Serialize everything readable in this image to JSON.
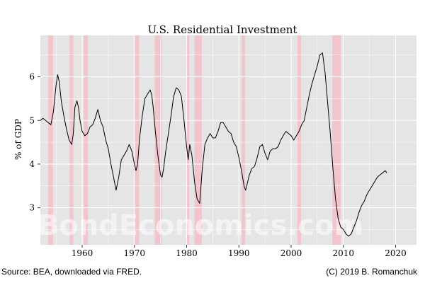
{
  "chart_data": {
    "type": "line",
    "title": "U.S. Residential Investment",
    "xlabel": "",
    "ylabel": "% of GDP",
    "xlim": [
      1952,
      2024
    ],
    "ylim": [
      2.15,
      6.95
    ],
    "x_ticks": [
      1960,
      1970,
      1980,
      1990,
      2000,
      2010,
      2020
    ],
    "y_ticks": [
      3,
      4,
      5,
      6
    ],
    "grid": true,
    "legend": "none",
    "colors": {
      "panel": "#e5e5e5",
      "grid": "#ffffff",
      "line": "#000000",
      "recession": "#f4c0c8"
    },
    "recessions": [
      [
        1953.5,
        1954.4
      ],
      [
        1957.6,
        1958.3
      ],
      [
        1960.3,
        1961.1
      ],
      [
        1969.9,
        1970.9
      ],
      [
        1973.9,
        1975.2
      ],
      [
        1980.0,
        1980.5
      ],
      [
        1981.5,
        1982.9
      ],
      [
        1990.5,
        1991.2
      ],
      [
        2001.2,
        2001.9
      ],
      [
        2007.9,
        2009.5
      ]
    ],
    "series": [
      {
        "x": [
          1952.0,
          1952.5,
          1953.0,
          1953.5,
          1954.0,
          1954.5,
          1955.0,
          1955.3,
          1955.6,
          1956.0,
          1956.5,
          1957.0,
          1957.5,
          1958.0,
          1958.3,
          1958.6,
          1959.0,
          1959.3,
          1959.6,
          1960.0,
          1960.5,
          1961.0,
          1961.5,
          1962.0,
          1962.5,
          1963.0,
          1963.5,
          1964.0,
          1964.5,
          1965.0,
          1965.5,
          1966.0,
          1966.5,
          1967.0,
          1967.5,
          1968.0,
          1968.5,
          1969.0,
          1969.5,
          1970.0,
          1970.3,
          1970.6,
          1971.0,
          1971.5,
          1972.0,
          1972.5,
          1973.0,
          1973.3,
          1973.6,
          1974.0,
          1974.5,
          1975.0,
          1975.3,
          1975.6,
          1976.0,
          1976.5,
          1977.0,
          1977.5,
          1978.0,
          1978.5,
          1979.0,
          1979.5,
          1980.0,
          1980.3,
          1980.6,
          1981.0,
          1981.5,
          1982.0,
          1982.5,
          1983.0,
          1983.5,
          1984.0,
          1984.5,
          1985.0,
          1985.5,
          1986.0,
          1986.5,
          1987.0,
          1987.5,
          1988.0,
          1988.5,
          1989.0,
          1989.5,
          1990.0,
          1990.5,
          1991.0,
          1991.3,
          1991.6,
          1992.0,
          1992.5,
          1993.0,
          1993.5,
          1994.0,
          1994.5,
          1995.0,
          1995.5,
          1996.0,
          1996.5,
          1997.0,
          1997.5,
          1998.0,
          1998.5,
          1999.0,
          1999.5,
          2000.0,
          2000.5,
          2001.0,
          2001.5,
          2002.0,
          2002.5,
          2003.0,
          2003.5,
          2004.0,
          2004.5,
          2005.0,
          2005.5,
          2006.0,
          2006.5,
          2007.0,
          2007.5,
          2008.0,
          2008.5,
          2009.0,
          2009.5,
          2010.0,
          2010.5,
          2011.0,
          2011.5,
          2012.0,
          2012.5,
          2013.0,
          2013.5,
          2014.0,
          2014.5,
          2015.0,
          2015.5,
          2016.0,
          2016.5,
          2017.0,
          2017.5,
          2018.0,
          2018.3
        ],
        "values": [
          5.0,
          5.05,
          5.0,
          4.95,
          4.9,
          5.2,
          5.8,
          6.05,
          5.9,
          5.45,
          5.1,
          4.8,
          4.55,
          4.45,
          4.7,
          5.3,
          5.45,
          5.3,
          5.0,
          4.75,
          4.65,
          4.7,
          4.85,
          4.9,
          5.05,
          5.25,
          5.0,
          4.85,
          4.55,
          4.35,
          4.0,
          3.7,
          3.4,
          3.7,
          4.1,
          4.2,
          4.3,
          4.45,
          4.3,
          4.0,
          3.85,
          4.0,
          4.6,
          5.1,
          5.5,
          5.6,
          5.7,
          5.6,
          5.3,
          4.75,
          4.2,
          3.75,
          3.7,
          3.9,
          4.3,
          4.7,
          5.1,
          5.55,
          5.75,
          5.7,
          5.55,
          5.0,
          4.4,
          4.1,
          4.45,
          4.2,
          3.6,
          3.2,
          3.1,
          3.9,
          4.45,
          4.6,
          4.7,
          4.6,
          4.6,
          4.75,
          4.95,
          4.95,
          4.85,
          4.75,
          4.7,
          4.5,
          4.4,
          4.15,
          3.85,
          3.5,
          3.4,
          3.55,
          3.75,
          3.9,
          3.95,
          4.15,
          4.4,
          4.45,
          4.25,
          4.1,
          4.3,
          4.35,
          4.35,
          4.4,
          4.55,
          4.65,
          4.75,
          4.7,
          4.65,
          4.55,
          4.65,
          4.75,
          4.9,
          5.0,
          5.3,
          5.6,
          5.85,
          6.05,
          6.25,
          6.5,
          6.55,
          6.1,
          5.4,
          4.7,
          3.9,
          3.2,
          2.75,
          2.55,
          2.5,
          2.4,
          2.35,
          2.4,
          2.55,
          2.7,
          2.9,
          3.05,
          3.15,
          3.3,
          3.4,
          3.5,
          3.6,
          3.7,
          3.75,
          3.8,
          3.85,
          3.8
        ]
      }
    ]
  },
  "footer": {
    "source": "Source: BEA, downloaded via FRED.",
    "credit": "(C) 2019 B. Romanchuk"
  },
  "watermark": "BondEconomics.com"
}
